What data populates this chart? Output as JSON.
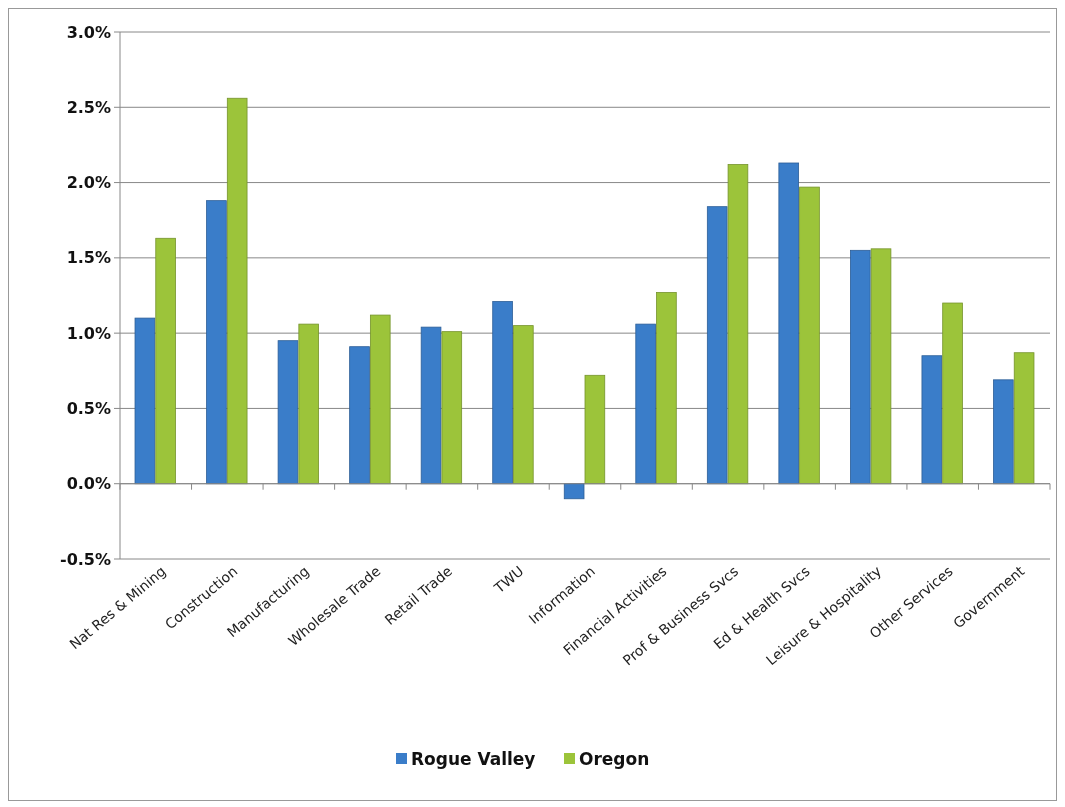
{
  "chart_data": {
    "type": "bar",
    "categories": [
      "Nat Res & Mining",
      "Construction",
      "Manufacturing",
      "Wholesale Trade",
      "Retail Trade",
      "TWU",
      "Information",
      "Financial Activities",
      "Prof & Business Svcs",
      "Ed & Health Svcs",
      "Leisure & Hospitality",
      "Other Services",
      "Government"
    ],
    "series": [
      {
        "name": "Rogue Valley",
        "color": "#3a7dc9",
        "values": [
          1.1,
          1.88,
          0.95,
          0.91,
          1.04,
          1.21,
          -0.1,
          1.06,
          1.84,
          2.13,
          1.55,
          0.85,
          0.69
        ]
      },
      {
        "name": "Oregon",
        "color": "#9cc43a",
        "values": [
          1.63,
          2.56,
          1.06,
          1.12,
          1.01,
          1.05,
          0.72,
          1.27,
          2.12,
          1.97,
          1.56,
          1.2,
          0.87
        ]
      }
    ],
    "ylim": [
      -0.5,
      3.0
    ],
    "yticks": [
      {
        "value": -0.5,
        "label": "-0.5%"
      },
      {
        "value": 0,
        "label": "0.0%"
      },
      {
        "value": 0.5,
        "label": "0.5%"
      },
      {
        "value": 1,
        "label": "1.0%"
      },
      {
        "value": 1.5,
        "label": "1.5%"
      },
      {
        "value": 2,
        "label": "2.0%"
      },
      {
        "value": 2.5,
        "label": "2.5%"
      },
      {
        "value": 3,
        "label": "3.0%"
      }
    ],
    "grid": "y",
    "legend": "bottom"
  }
}
